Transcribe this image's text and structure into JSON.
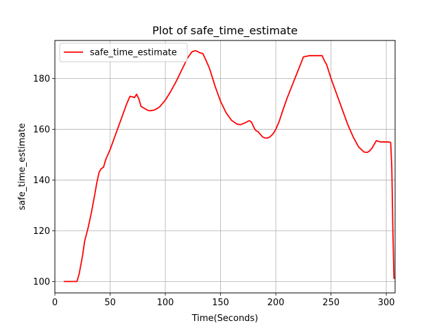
{
  "chart_data": {
    "type": "line",
    "title": "Plot of safe_time_estimate",
    "xlabel": "Time(Seconds)",
    "ylabel": "safe_time_estimate",
    "xlim": [
      0,
      308
    ],
    "ylim": [
      95.5,
      195
    ],
    "xticks": [
      0,
      50,
      100,
      150,
      200,
      250,
      300
    ],
    "yticks": [
      100,
      120,
      140,
      160,
      180
    ],
    "grid": true,
    "legend_position": "top-left",
    "series": [
      {
        "name": "safe_time_estimate",
        "color": "#ff0000",
        "x": [
          8,
          12,
          18,
          20,
          22,
          25,
          27,
          30,
          33,
          36,
          38,
          40,
          42,
          44,
          46,
          48,
          50,
          55,
          60,
          65,
          68,
          70,
          72,
          74,
          76,
          78,
          80,
          82,
          84,
          86,
          88,
          90,
          92,
          95,
          100,
          105,
          110,
          115,
          120,
          124,
          127,
          129,
          131,
          134,
          137,
          140,
          145,
          150,
          155,
          160,
          165,
          168,
          172,
          176,
          178,
          181,
          182,
          184,
          186,
          188,
          190,
          192,
          194,
          196,
          198,
          200,
          203,
          206,
          210,
          215,
          220,
          225,
          230,
          235,
          238,
          240,
          242,
          244,
          246,
          250,
          255,
          260,
          265,
          270,
          275,
          280,
          283,
          285,
          287,
          289,
          291,
          293,
          295,
          297,
          300,
          302,
          304,
          305,
          306,
          307
        ],
        "y": [
          100,
          100,
          100,
          100,
          103,
          110,
          116,
          121,
          127,
          134,
          139,
          143,
          144.5,
          145,
          148,
          150,
          152,
          158,
          164,
          170,
          173,
          172.8,
          172.5,
          173.8,
          172,
          169,
          168.5,
          168,
          167.5,
          167.3,
          167.4,
          167.6,
          168,
          168.9,
          171.5,
          175,
          179,
          183.5,
          188,
          190.5,
          191,
          190.7,
          190.2,
          189.8,
          187,
          184,
          177,
          171,
          166.5,
          163.5,
          162,
          161.8,
          162.5,
          163.4,
          162.8,
          160,
          159.5,
          159,
          158,
          157,
          156.6,
          156.5,
          156.8,
          157.5,
          158.5,
          160,
          163,
          167,
          172,
          177.5,
          183,
          188.5,
          189,
          189,
          189,
          189,
          189,
          187,
          185.5,
          180,
          174,
          168,
          162,
          157,
          153,
          151,
          150.9,
          151.5,
          152.5,
          154,
          155.5,
          155.2,
          155,
          155,
          155,
          155,
          154.8,
          145,
          120,
          101
        ]
      }
    ]
  }
}
